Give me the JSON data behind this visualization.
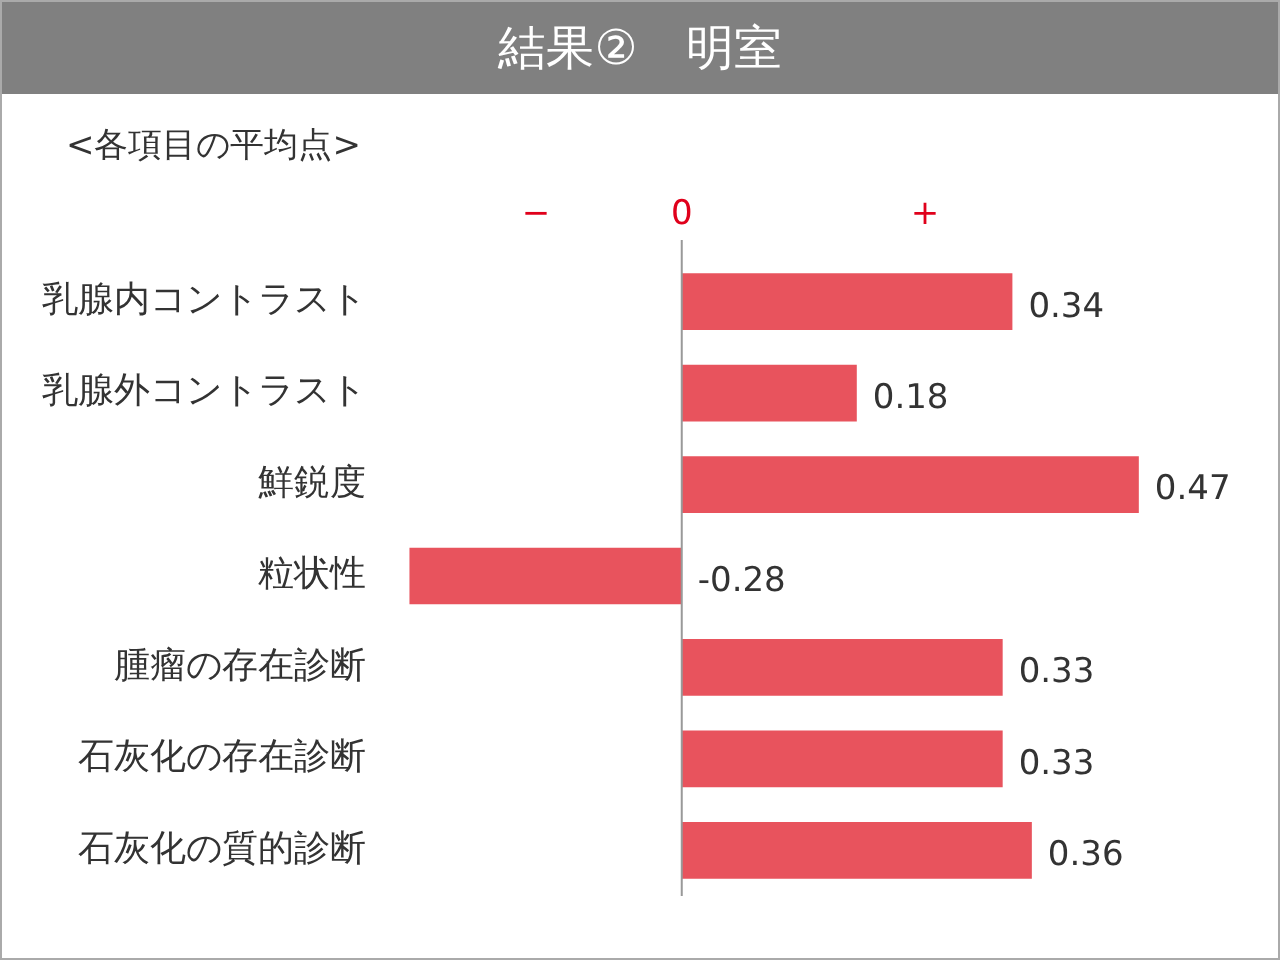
{
  "chart_data": {
    "type": "bar",
    "title": "結果②　明室",
    "subtitle": "<各項目の平均点>",
    "orientation": "horizontal",
    "categories": [
      "乳腺内コントラスト",
      "乳腺外コントラスト",
      "鮮鋭度",
      "粒状性",
      "腫瘤の存在診断",
      "石灰化の存在診断",
      "石灰化の質的診断"
    ],
    "values": [
      0.34,
      0.18,
      0.47,
      -0.28,
      0.33,
      0.33,
      0.36
    ],
    "color": "#e8535d",
    "annotations": [
      "−",
      "+"
    ],
    "grid": false,
    "data_labels": true,
    "ref_lines": [
      {
        "axis": "x",
        "value": 0,
        "label": "0",
        "color": "#999999"
      }
    ]
  }
}
